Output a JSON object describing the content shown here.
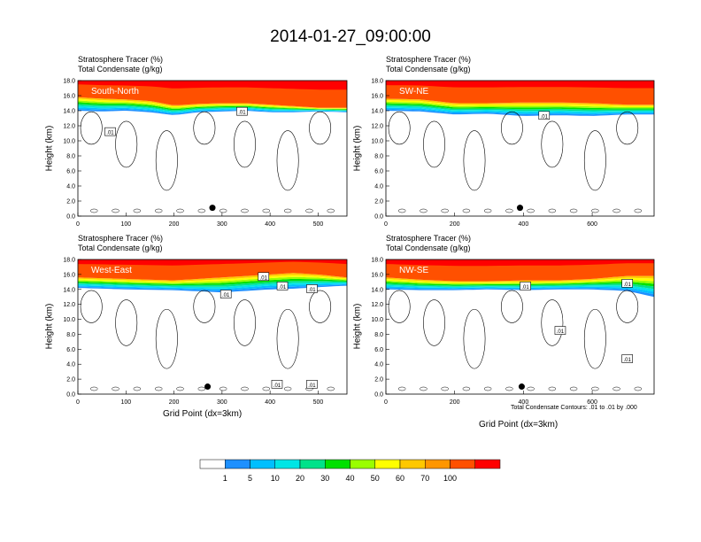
{
  "title": "2014-01-27_09:00:00",
  "panel_header": {
    "line1": "Stratosphere Tracer   (%)",
    "line2": "Total Condensate   (g/kg)"
  },
  "axes": {
    "ylabel": "Height (km)",
    "xlabel": "Grid Point (dx=3km)"
  },
  "contour_note": "Total Condensate Contours: .01 to .01 by .000",
  "colorbar": {
    "labels": [
      "1",
      "5",
      "10",
      "20",
      "30",
      "40",
      "50",
      "60",
      "70",
      "100"
    ],
    "colors": [
      "#ffffff",
      "#1e90ff",
      "#00bfff",
      "#00e5e5",
      "#00e28a",
      "#00e000",
      "#9aff00",
      "#ffff00",
      "#ffc800",
      "#ff9600",
      "#ff5000",
      "#ff0000"
    ]
  },
  "chart_data": [
    {
      "type": "heatmap",
      "title": "South-North",
      "xlim": [
        0,
        560
      ],
      "ylim": [
        0,
        18
      ],
      "xticks": [
        "0",
        "100",
        "200",
        "300",
        "400",
        "500"
      ],
      "yticks": [
        "0.0",
        "2.0",
        "4.0",
        "6.0",
        "8.0",
        "10.0",
        "12.0",
        "14.0",
        "16.0",
        "18.0"
      ],
      "contour_labels": [
        ".01",
        ".01"
      ],
      "tracer_top": [
        [
          0,
          15.8
        ],
        [
          50,
          15.6
        ],
        [
          100,
          15.5
        ],
        [
          150,
          15.3
        ],
        [
          200,
          14.7
        ],
        [
          250,
          14.9
        ],
        [
          300,
          15.0
        ],
        [
          350,
          15.0
        ],
        [
          400,
          14.8
        ],
        [
          450,
          14.6
        ],
        [
          500,
          14.4
        ],
        [
          560,
          14.4
        ]
      ],
      "tracer_bottom": [
        [
          0,
          14.0
        ],
        [
          50,
          13.9
        ],
        [
          100,
          14.0
        ],
        [
          150,
          13.8
        ],
        [
          200,
          13.4
        ],
        [
          250,
          13.8
        ],
        [
          300,
          13.9
        ],
        [
          350,
          14.0
        ],
        [
          400,
          13.8
        ],
        [
          450,
          13.8
        ],
        [
          500,
          13.9
        ],
        [
          560,
          13.8
        ]
      ],
      "marker": [
        280,
        1.1
      ]
    },
    {
      "type": "heatmap",
      "title": "SW-NE",
      "xlim": [
        0,
        780
      ],
      "ylim": [
        0,
        18
      ],
      "xticks": [
        "0",
        "200",
        "400",
        "600"
      ],
      "yticks": [
        "0.0",
        "2.0",
        "4.0",
        "6.0",
        "8.0",
        "10.0",
        "12.0",
        "14.0",
        "16.0",
        "18.0"
      ],
      "contour_labels": [
        ".01"
      ],
      "tracer_top": [
        [
          0,
          15.6
        ],
        [
          100,
          15.5
        ],
        [
          200,
          15.0
        ],
        [
          300,
          15.0
        ],
        [
          400,
          15.1
        ],
        [
          500,
          15.1
        ],
        [
          600,
          15.0
        ],
        [
          700,
          14.8
        ],
        [
          780,
          14.8
        ]
      ],
      "tracer_bottom": [
        [
          0,
          14.0
        ],
        [
          100,
          13.9
        ],
        [
          200,
          13.5
        ],
        [
          300,
          13.6
        ],
        [
          400,
          13.3
        ],
        [
          500,
          13.4
        ],
        [
          600,
          13.3
        ],
        [
          700,
          13.5
        ],
        [
          780,
          13.5
        ]
      ],
      "marker": [
        390,
        1.1
      ]
    },
    {
      "type": "heatmap",
      "title": "West-East",
      "xlim": [
        0,
        560
      ],
      "ylim": [
        0,
        18
      ],
      "xticks": [
        "0",
        "100",
        "200",
        "300",
        "400",
        "500"
      ],
      "yticks": [
        "0.0",
        "2.0",
        "4.0",
        "6.0",
        "8.0",
        "10.0",
        "12.0",
        "14.0",
        "16.0",
        "18.0"
      ],
      "contour_labels": [
        ".01",
        ".01",
        ".01",
        ".01",
        ".01",
        ".01"
      ],
      "tracer_top": [
        [
          0,
          15.6
        ],
        [
          100,
          15.4
        ],
        [
          200,
          15.2
        ],
        [
          300,
          15.6
        ],
        [
          400,
          16.0
        ],
        [
          450,
          16.2
        ],
        [
          500,
          16.0
        ],
        [
          560,
          15.6
        ]
      ],
      "tracer_bottom": [
        [
          0,
          14.2
        ],
        [
          100,
          14.0
        ],
        [
          200,
          13.9
        ],
        [
          300,
          13.6
        ],
        [
          350,
          13.8
        ],
        [
          400,
          14.0
        ],
        [
          450,
          14.1
        ],
        [
          500,
          14.3
        ],
        [
          560,
          14.5
        ]
      ],
      "marker": [
        270,
        1.0
      ]
    },
    {
      "type": "heatmap",
      "title": "NW-SE",
      "xlim": [
        0,
        780
      ],
      "ylim": [
        0,
        18
      ],
      "xticks": [
        "0",
        "200",
        "400",
        "600"
      ],
      "yticks": [
        "0.0",
        "2.0",
        "4.0",
        "6.0",
        "8.0",
        "10.0",
        "12.0",
        "14.0",
        "16.0",
        "18.0"
      ],
      "contour_labels": [
        ".01",
        ".01",
        ".01",
        ".01"
      ],
      "tracer_top": [
        [
          0,
          15.6
        ],
        [
          100,
          15.3
        ],
        [
          200,
          15.1
        ],
        [
          300,
          15.1
        ],
        [
          400,
          15.2
        ],
        [
          500,
          15.2
        ],
        [
          600,
          15.4
        ],
        [
          700,
          15.8
        ],
        [
          780,
          15.8
        ]
      ],
      "tracer_bottom": [
        [
          0,
          14.0
        ],
        [
          100,
          13.9
        ],
        [
          200,
          13.9
        ],
        [
          300,
          14.0
        ],
        [
          400,
          13.9
        ],
        [
          500,
          14.0
        ],
        [
          600,
          14.0
        ],
        [
          700,
          13.8
        ],
        [
          780,
          13.0
        ]
      ],
      "marker": [
        395,
        1.0
      ]
    }
  ]
}
